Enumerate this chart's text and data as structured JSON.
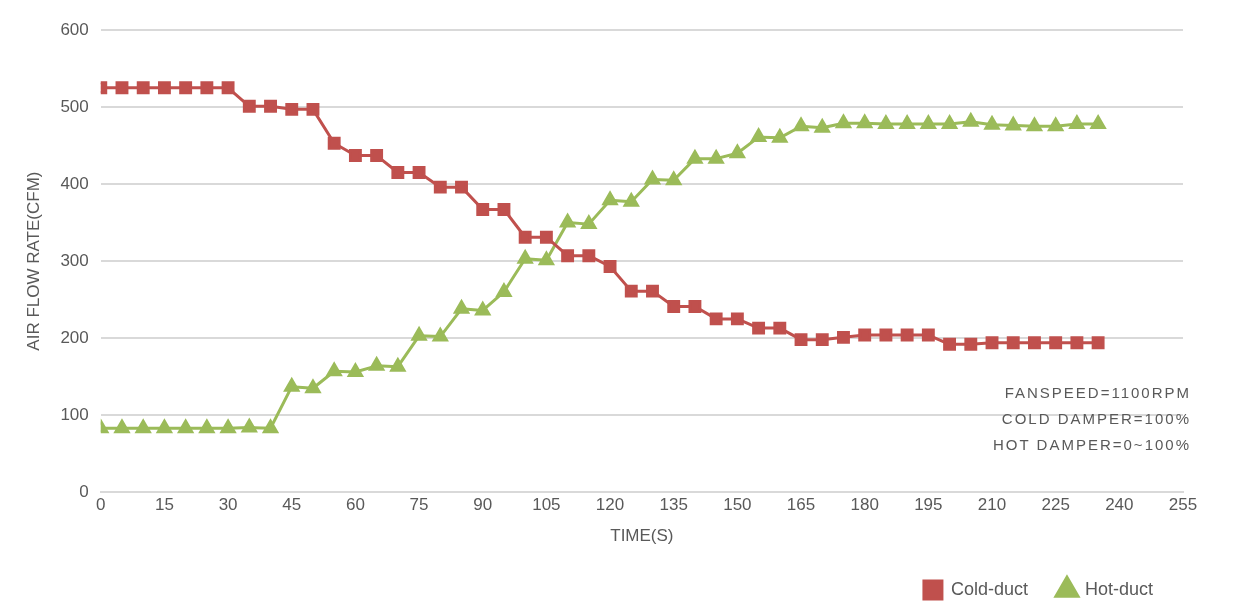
{
  "chart_data": {
    "type": "line",
    "xlabel": "TIME(S)",
    "ylabel": "AIR FLOW RATE(CFM)",
    "x": [
      0,
      5,
      10,
      15,
      20,
      25,
      30,
      35,
      40,
      45,
      50,
      55,
      60,
      65,
      70,
      75,
      80,
      85,
      90,
      95,
      100,
      105,
      110,
      115,
      120,
      125,
      130,
      135,
      140,
      145,
      150,
      155,
      160,
      165,
      170,
      175,
      180,
      185,
      190,
      195,
      200,
      205,
      210,
      215,
      220,
      225,
      230,
      235
    ],
    "series": [
      {
        "name": "Cold-duct",
        "color": "#c0504d",
        "marker": "square",
        "values": [
          525,
          525,
          525,
          525,
          525,
          525,
          525,
          501,
          501,
          497,
          497,
          453,
          437,
          437,
          415,
          415,
          396,
          396,
          367,
          367,
          331,
          331,
          307,
          307,
          293,
          261,
          261,
          241,
          241,
          225,
          225,
          213,
          213,
          198,
          198,
          201,
          204,
          204,
          204,
          204,
          192,
          192,
          194,
          194,
          194,
          194,
          194,
          194
        ]
      },
      {
        "name": "Hot-duct",
        "color": "#9bbb59",
        "marker": "triangle",
        "values": [
          83,
          83,
          83,
          83,
          83,
          83,
          83,
          84,
          83,
          137,
          135,
          157,
          156,
          164,
          163,
          203,
          202,
          238,
          236,
          260,
          303,
          301,
          350,
          348,
          379,
          377,
          406,
          405,
          433,
          433,
          440,
          461,
          460,
          475,
          473,
          479,
          479,
          478,
          478,
          478,
          478,
          481,
          477,
          476,
          475,
          475,
          478,
          478
        ]
      }
    ],
    "xlim": [
      0,
      255
    ],
    "xticks": [
      0,
      15,
      30,
      45,
      60,
      75,
      90,
      105,
      120,
      135,
      150,
      165,
      180,
      195,
      210,
      225,
      240,
      255
    ],
    "ylim": [
      0,
      600
    ],
    "yticks": [
      0,
      100,
      200,
      300,
      400,
      500,
      600
    ],
    "grid": "y",
    "legend": "bottom right",
    "line_style": "solid",
    "annotations": [
      "FANSPEED=1100RPM",
      "COLD DAMPER=100%",
      "HOT DAMPER=0~100%"
    ]
  }
}
